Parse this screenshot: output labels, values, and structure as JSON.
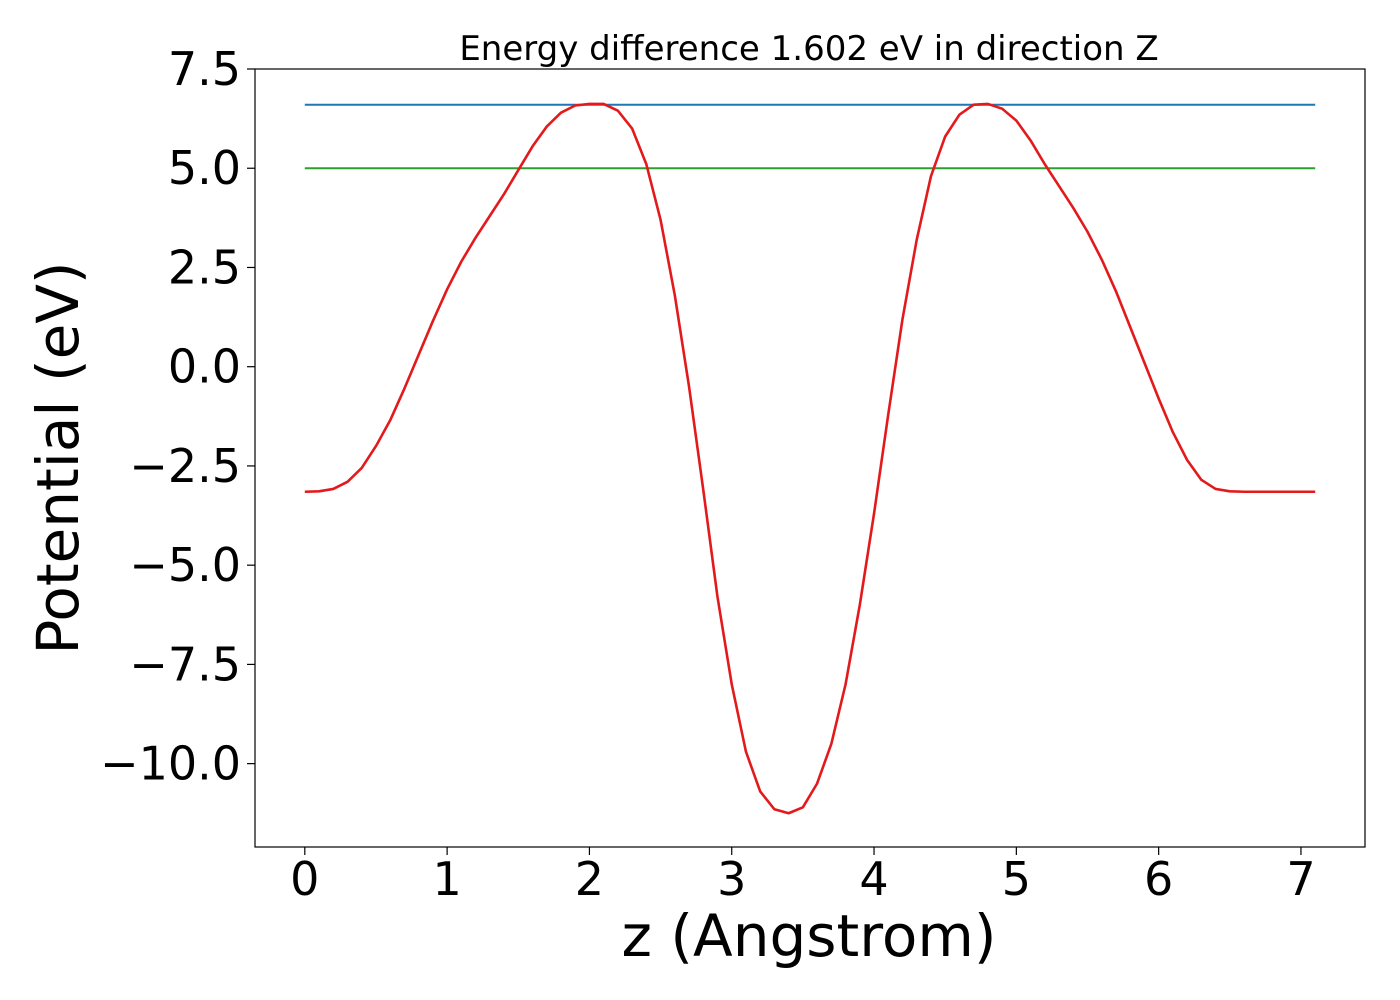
{
  "chart_data": {
    "type": "line",
    "title": "Energy difference 1.602 eV in direction Z",
    "xlabel": "z (Angstrom)",
    "ylabel": "Potential (eV)",
    "xlim": [
      -0.35,
      7.45
    ],
    "ylim": [
      -12.1,
      7.5
    ],
    "xticks": [
      0,
      1,
      2,
      3,
      4,
      5,
      6,
      7
    ],
    "xtick_labels": [
      "0",
      "1",
      "2",
      "3",
      "4",
      "5",
      "6",
      "7"
    ],
    "yticks": [
      7.5,
      5.0,
      2.5,
      0.0,
      -2.5,
      -5.0,
      -7.5,
      -10.0
    ],
    "ytick_labels": [
      "7.5",
      "5.0",
      "2.5",
      "0.0",
      "−2.5",
      "−5.0",
      "−7.5",
      "−10.0"
    ],
    "grid": false,
    "legend": "none",
    "series": [
      {
        "color": "#1f77b4",
        "x": [
          0,
          7.1
        ],
        "y": [
          6.6,
          6.6
        ]
      },
      {
        "color": "#2ca02c",
        "x": [
          0,
          7.1
        ],
        "y": [
          5.0,
          5.0
        ]
      },
      {
        "color": "#e31a1c",
        "x": [
          0,
          0.1,
          0.2,
          0.3,
          0.4,
          0.5,
          0.6,
          0.7,
          0.8,
          0.9,
          1.0,
          1.1,
          1.2,
          1.3,
          1.4,
          1.5,
          1.6,
          1.7,
          1.8,
          1.9,
          2.0,
          2.1,
          2.2,
          2.3,
          2.4,
          2.5,
          2.6,
          2.7,
          2.8,
          2.9,
          3.0,
          3.1,
          3.2,
          3.3,
          3.4,
          3.5,
          3.6,
          3.7,
          3.8,
          3.9,
          4.0,
          4.1,
          4.2,
          4.3,
          4.4,
          4.5,
          4.6,
          4.7,
          4.8,
          4.9,
          5.0,
          5.1,
          5.2,
          5.3,
          5.4,
          5.5,
          5.6,
          5.7,
          5.8,
          5.9,
          6.0,
          6.1,
          6.2,
          6.3,
          6.4,
          6.5,
          6.6,
          6.7,
          6.8,
          6.9,
          7.0,
          7.1
        ],
        "y": [
          -3.15,
          -3.14,
          -3.08,
          -2.9,
          -2.55,
          -2.0,
          -1.35,
          -0.55,
          0.3,
          1.15,
          1.95,
          2.65,
          3.25,
          3.8,
          4.35,
          4.95,
          5.55,
          6.05,
          6.4,
          6.58,
          6.62,
          6.62,
          6.45,
          6.0,
          5.1,
          3.7,
          1.8,
          -0.5,
          -3.1,
          -5.8,
          -8.0,
          -9.7,
          -10.7,
          -11.15,
          -11.25,
          -11.1,
          -10.5,
          -9.5,
          -8.0,
          -6.0,
          -3.7,
          -1.2,
          1.2,
          3.2,
          4.8,
          5.8,
          6.35,
          6.6,
          6.62,
          6.5,
          6.2,
          5.7,
          5.1,
          4.55,
          4.0,
          3.4,
          2.7,
          1.9,
          1.0,
          0.1,
          -0.8,
          -1.65,
          -2.35,
          -2.85,
          -3.08,
          -3.14,
          -3.15,
          -3.15,
          -3.15,
          -3.15,
          -3.15,
          -3.15
        ]
      }
    ]
  }
}
